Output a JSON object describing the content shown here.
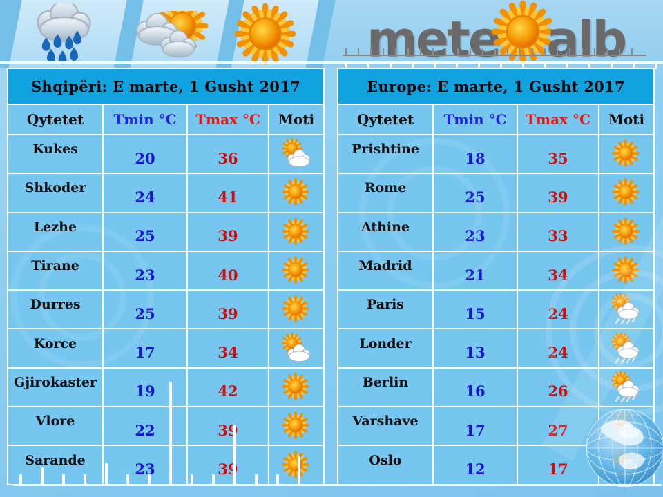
{
  "brand": {
    "logo_part1": "mete",
    "logo_part2": "alb",
    "logo_sun_icon": "sun-icon"
  },
  "header_icons": [
    "rain-cloud",
    "sun-behind-cloud",
    "sun"
  ],
  "colors": {
    "title_bar": "#11a3e0",
    "cell": "#77c6ef",
    "grid": "#ffffff",
    "tmin_value": "#1414d2",
    "tmax_value": "#cf0f0f",
    "tmin_header": "#2020e8",
    "tmax_header": "#ee1515",
    "logo_gray": "#6a6a6a",
    "sun_orange": "#f29100"
  },
  "tables": [
    {
      "title": "Shqipëri: E marte, 1 Gusht 2017",
      "columns": {
        "city": "Qytetet",
        "tmin": "Tmin °C",
        "tmax": "Tmax °C",
        "weather": "Moti"
      },
      "rows": [
        {
          "city": "Kukes",
          "tmin": 20,
          "tmax": 36,
          "icon": "sun-cloud"
        },
        {
          "city": "Shkoder",
          "tmin": 24,
          "tmax": 41,
          "icon": "sun"
        },
        {
          "city": "Lezhe",
          "tmin": 25,
          "tmax": 39,
          "icon": "sun"
        },
        {
          "city": "Tirane",
          "tmin": 23,
          "tmax": 40,
          "icon": "sun"
        },
        {
          "city": "Durres",
          "tmin": 25,
          "tmax": 39,
          "icon": "sun"
        },
        {
          "city": "Korce",
          "tmin": 17,
          "tmax": 34,
          "icon": "sun-cloud"
        },
        {
          "city": "Gjirokaster",
          "tmin": 19,
          "tmax": 42,
          "icon": "sun"
        },
        {
          "city": "Vlore",
          "tmin": 22,
          "tmax": 39,
          "icon": "sun"
        },
        {
          "city": "Sarande",
          "tmin": 23,
          "tmax": 39,
          "icon": "sun"
        }
      ]
    },
    {
      "title": "Europe: E marte, 1 Gusht 2017",
      "columns": {
        "city": "Qytetet",
        "tmin": "Tmin °C",
        "tmax": "Tmax °C",
        "weather": "Moti"
      },
      "rows": [
        {
          "city": "Prishtine",
          "tmin": 18,
          "tmax": 35,
          "icon": "sun"
        },
        {
          "city": "Rome",
          "tmin": 25,
          "tmax": 39,
          "icon": "sun"
        },
        {
          "city": "Athine",
          "tmin": 23,
          "tmax": 33,
          "icon": "sun"
        },
        {
          "city": "Madrid",
          "tmin": 21,
          "tmax": 34,
          "icon": "sun"
        },
        {
          "city": "Paris",
          "tmin": 15,
          "tmax": 24,
          "icon": "sun-cloud-rain"
        },
        {
          "city": "Londer",
          "tmin": 13,
          "tmax": 24,
          "icon": "sun-cloud-rain"
        },
        {
          "city": "Berlin",
          "tmin": 16,
          "tmax": 26,
          "icon": "sun-cloud-rain"
        },
        {
          "city": "Varshave",
          "tmin": 17,
          "tmax": 27,
          "icon": "sun-cloud"
        },
        {
          "city": "Oslo",
          "tmin": 12,
          "tmax": 17,
          "icon": "sun-cloud-rain"
        }
      ]
    }
  ],
  "chart_data": [
    {
      "type": "table",
      "title": "Shqipëri: E marte, 1 Gusht 2017",
      "columns": [
        "Qytetet",
        "Tmin °C",
        "Tmax °C",
        "Moti"
      ],
      "rows": [
        [
          "Kukes",
          20,
          36,
          "sun-cloud"
        ],
        [
          "Shkoder",
          24,
          41,
          "sun"
        ],
        [
          "Lezhe",
          25,
          39,
          "sun"
        ],
        [
          "Tirane",
          23,
          40,
          "sun"
        ],
        [
          "Durres",
          25,
          39,
          "sun"
        ],
        [
          "Korce",
          17,
          34,
          "sun-cloud"
        ],
        [
          "Gjirokaster",
          19,
          42,
          "sun"
        ],
        [
          "Vlore",
          22,
          39,
          "sun"
        ],
        [
          "Sarande",
          23,
          39,
          "sun"
        ]
      ]
    },
    {
      "type": "table",
      "title": "Europe: E marte, 1 Gusht 2017",
      "columns": [
        "Qytetet",
        "Tmin °C",
        "Tmax °C",
        "Moti"
      ],
      "rows": [
        [
          "Prishtine",
          18,
          35,
          "sun"
        ],
        [
          "Rome",
          25,
          39,
          "sun"
        ],
        [
          "Athine",
          23,
          33,
          "sun"
        ],
        [
          "Madrid",
          21,
          34,
          "sun"
        ],
        [
          "Paris",
          15,
          24,
          "sun-cloud-rain"
        ],
        [
          "Londer",
          13,
          24,
          "sun-cloud-rain"
        ],
        [
          "Berlin",
          16,
          26,
          "sun-cloud-rain"
        ],
        [
          "Varshave",
          17,
          27,
          "sun-cloud"
        ],
        [
          "Oslo",
          12,
          17,
          "sun-cloud-rain"
        ]
      ]
    }
  ]
}
